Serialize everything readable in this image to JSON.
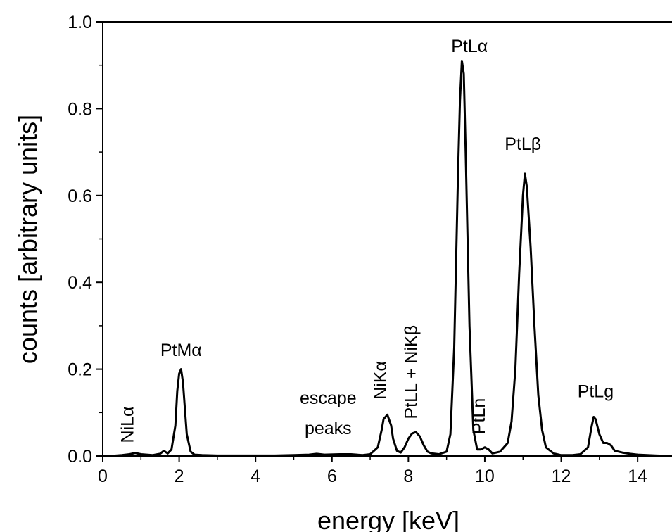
{
  "chart_data": {
    "type": "line",
    "xlabel": "energy  [keV]",
    "ylabel": "counts  [arbitrary units]",
    "xlim": [
      0,
      14.9
    ],
    "ylim": [
      0,
      1.0
    ],
    "xticks": [
      0,
      2,
      4,
      6,
      8,
      10,
      12,
      14
    ],
    "xtick_labels": [
      "0",
      "2",
      "4",
      "6",
      "8",
      "10",
      "12",
      "14"
    ],
    "yticks": [
      0.0,
      0.2,
      0.4,
      0.6,
      0.8,
      1.0
    ],
    "ytick_labels": [
      "0.0",
      "0.2",
      "0.4",
      "0.6",
      "0.8",
      "1.0"
    ],
    "grid": false,
    "legend": "none",
    "line_color": "#000000",
    "series": [
      {
        "x": [
          0.2,
          0.5,
          0.7,
          0.85,
          1.0,
          1.3,
          1.5,
          1.6,
          1.7,
          1.8,
          1.9,
          1.95,
          2.0,
          2.05,
          2.1,
          2.15,
          2.2,
          2.3,
          2.4,
          2.6,
          3.0,
          3.5,
          4.0,
          4.5,
          5.0,
          5.4,
          5.6,
          5.8,
          6.2,
          6.5,
          6.8,
          7.0,
          7.2,
          7.3,
          7.35,
          7.45,
          7.55,
          7.6,
          7.7,
          7.8,
          7.9,
          8.0,
          8.1,
          8.2,
          8.3,
          8.4,
          8.5,
          8.6,
          8.8,
          9.0,
          9.1,
          9.2,
          9.3,
          9.35,
          9.4,
          9.45,
          9.5,
          9.6,
          9.7,
          9.8,
          9.9,
          10.0,
          10.1,
          10.2,
          10.4,
          10.6,
          10.7,
          10.8,
          10.9,
          11.0,
          11.05,
          11.1,
          11.2,
          11.3,
          11.4,
          11.5,
          11.6,
          11.8,
          12.0,
          12.3,
          12.5,
          12.7,
          12.8,
          12.85,
          12.9,
          13.0,
          13.1,
          13.2,
          13.3,
          13.4,
          13.6,
          13.8,
          14.0,
          14.5,
          14.9
        ],
        "values": [
          0.0,
          0.002,
          0.004,
          0.007,
          0.004,
          0.002,
          0.005,
          0.012,
          0.006,
          0.015,
          0.07,
          0.15,
          0.19,
          0.2,
          0.17,
          0.11,
          0.05,
          0.01,
          0.003,
          0.002,
          0.001,
          0.001,
          0.001,
          0.001,
          0.002,
          0.003,
          0.005,
          0.003,
          0.004,
          0.004,
          0.002,
          0.004,
          0.02,
          0.06,
          0.085,
          0.095,
          0.07,
          0.04,
          0.012,
          0.008,
          0.02,
          0.04,
          0.052,
          0.055,
          0.045,
          0.025,
          0.01,
          0.006,
          0.004,
          0.01,
          0.05,
          0.25,
          0.65,
          0.82,
          0.91,
          0.88,
          0.7,
          0.3,
          0.06,
          0.015,
          0.015,
          0.02,
          0.015,
          0.006,
          0.01,
          0.03,
          0.08,
          0.2,
          0.42,
          0.6,
          0.65,
          0.62,
          0.48,
          0.3,
          0.14,
          0.06,
          0.02,
          0.006,
          0.002,
          0.002,
          0.004,
          0.02,
          0.07,
          0.09,
          0.085,
          0.05,
          0.03,
          0.03,
          0.025,
          0.012,
          0.008,
          0.005,
          0.003,
          0.001,
          0.0
        ]
      }
    ],
    "annotations": [
      {
        "text": "NiLα",
        "x": 0.8,
        "y": 0.03,
        "rotation": -90
      },
      {
        "text": "PtMα",
        "x": 2.05,
        "y": 0.23,
        "rotation": 0
      },
      {
        "text": "escape",
        "x": 5.9,
        "y": 0.12,
        "rotation": 0
      },
      {
        "text": "peaks",
        "x": 5.9,
        "y": 0.05,
        "rotation": 0
      },
      {
        "text": "NiKα",
        "x": 7.42,
        "y": 0.13,
        "rotation": -90
      },
      {
        "text": "PtLL + NiKβ",
        "x": 8.22,
        "y": 0.085,
        "rotation": -90
      },
      {
        "text": "PtLα",
        "x": 9.6,
        "y": 0.93,
        "rotation": 0
      },
      {
        "text": "PtLβ",
        "x": 11.0,
        "y": 0.705,
        "rotation": 0
      },
      {
        "text": "PtLn",
        "x": 10.0,
        "y": 0.05,
        "rotation": -90
      },
      {
        "text": "PtLg",
        "x": 12.9,
        "y": 0.135,
        "rotation": 0
      }
    ]
  }
}
